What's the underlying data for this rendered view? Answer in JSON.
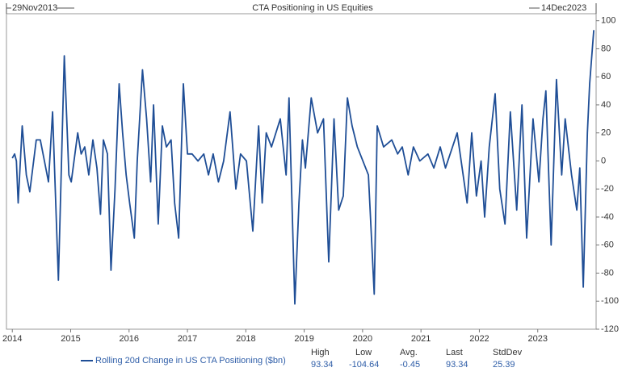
{
  "chart_data": {
    "type": "line",
    "title": "CTA Positioning in US Equities",
    "start_label": "29Nov2013",
    "end_label": "14Dec2023",
    "x": [
      2014.0,
      2014.04,
      2014.07,
      2014.1,
      2014.17,
      2014.24,
      2014.3,
      2014.41,
      2014.48,
      2014.55,
      2014.62,
      2014.69,
      2014.79,
      2014.89,
      2014.97,
      2015.01,
      2015.12,
      2015.18,
      2015.24,
      2015.31,
      2015.38,
      2015.45,
      2015.51,
      2015.56,
      2015.63,
      2015.69,
      2015.76,
      2015.83,
      2015.89,
      2015.95,
      2016.01,
      2016.09,
      2016.14,
      2016.23,
      2016.3,
      2016.37,
      2016.42,
      2016.5,
      2016.57,
      2016.64,
      2016.72,
      2016.78,
      2016.85,
      2016.93,
      2017.0,
      2017.08,
      2017.18,
      2017.28,
      2017.36,
      2017.44,
      2017.53,
      2017.62,
      2017.73,
      2017.83,
      2017.91,
      2018.01,
      2018.12,
      2018.22,
      2018.28,
      2018.35,
      2018.44,
      2018.59,
      2018.69,
      2018.74,
      2018.84,
      2018.91,
      2018.97,
      2019.02,
      2019.12,
      2019.23,
      2019.33,
      2019.42,
      2019.51,
      2019.59,
      2019.67,
      2019.74,
      2019.82,
      2019.91,
      2020.1,
      2020.2,
      2020.25,
      2020.36,
      2020.5,
      2020.6,
      2020.68,
      2020.78,
      2020.87,
      2020.98,
      2021.12,
      2021.22,
      2021.33,
      2021.42,
      2021.54,
      2021.62,
      2021.79,
      2021.87,
      2021.95,
      2022.03,
      2022.09,
      2022.17,
      2022.27,
      2022.35,
      2022.44,
      2022.53,
      2022.64,
      2022.73,
      2022.81,
      2022.92,
      2023.02,
      2023.09,
      2023.14,
      2023.23,
      2023.32,
      2023.41,
      2023.47,
      2023.58,
      2023.67,
      2023.72,
      2023.78,
      2023.85,
      2023.89,
      2023.96
    ],
    "series": [
      {
        "name": "Rolling 20d Change in US CTA Positioning ($bn)",
        "color": "#1f4e96",
        "values": [
          2,
          5,
          0,
          -30,
          25,
          -10,
          -22,
          15,
          15,
          0,
          -15,
          35,
          -85,
          75,
          -10,
          -15,
          20,
          5,
          10,
          -10,
          15,
          -5,
          -38,
          15,
          5,
          -78,
          -20,
          55,
          20,
          -10,
          -30,
          -55,
          0,
          65,
          30,
          -15,
          40,
          -45,
          25,
          10,
          15,
          -30,
          -55,
          55,
          5,
          5,
          0,
          5,
          -10,
          5,
          -15,
          0,
          35,
          -20,
          5,
          0,
          -50,
          25,
          -30,
          20,
          10,
          30,
          -10,
          45,
          -102,
          -30,
          15,
          -5,
          45,
          20,
          30,
          -72,
          30,
          -35,
          -25,
          45,
          25,
          10,
          -10,
          -95,
          25,
          10,
          15,
          5,
          10,
          -10,
          10,
          0,
          5,
          -5,
          10,
          -5,
          10,
          20,
          -30,
          20,
          -25,
          0,
          -40,
          10,
          48,
          -20,
          -45,
          35,
          -35,
          40,
          -55,
          30,
          -15,
          30,
          50,
          -60,
          58,
          -10,
          30,
          -10,
          -35,
          -5,
          -90,
          20,
          55,
          93.34
        ]
      }
    ],
    "xlim": [
      2013.9,
      2024.0
    ],
    "xticks": [
      2014,
      2015,
      2016,
      2017,
      2018,
      2019,
      2020,
      2021,
      2022,
      2023
    ],
    "ylim": [
      -120,
      105
    ],
    "yticks": [
      100,
      80,
      60,
      40,
      20,
      0,
      -20,
      -40,
      -60,
      -80,
      -100,
      -120
    ],
    "grid": false,
    "stats": [
      {
        "label": "High",
        "value": 93.34
      },
      {
        "label": "Low",
        "value": -104.64
      },
      {
        "label": "Avg.",
        "value": -0.45
      },
      {
        "label": "Last",
        "value": 93.34
      },
      {
        "label": "StdDev",
        "value": 25.39
      }
    ]
  }
}
